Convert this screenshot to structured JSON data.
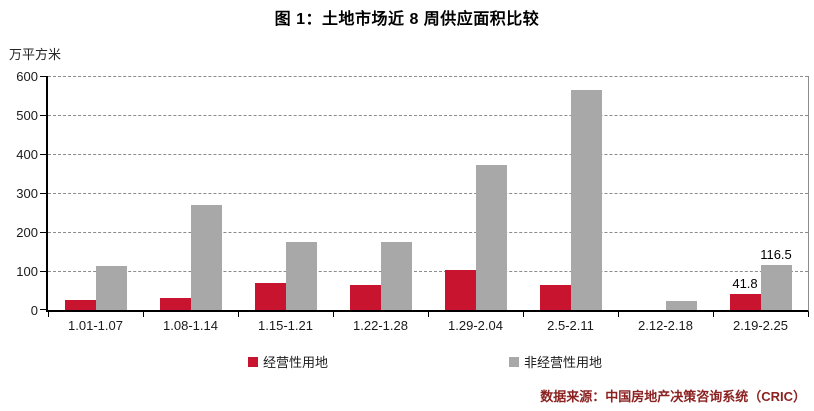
{
  "title": "图 1：土地市场近 8 周供应面积比较",
  "unit_label": "万平方米",
  "source": "数据来源：中国房地产决策咨询系统（CRIC）",
  "colors": {
    "operational": "#C8142E",
    "non_operational": "#A8A8A8",
    "grid": "#8C8C8C",
    "source_text": "#8B2221"
  },
  "chart_data": {
    "type": "bar",
    "categories": [
      "1.01-1.07",
      "1.08-1.14",
      "1.15-1.21",
      "1.22-1.28",
      "1.29-2.04",
      "2.5-2.11",
      "2.12-2.18",
      "2.19-2.25"
    ],
    "series": [
      {
        "name": "经营性用地",
        "color_key": "operational",
        "values": [
          25,
          30,
          70,
          65,
          103,
          64,
          0,
          41.8
        ]
      },
      {
        "name": "非经营性用地",
        "color_key": "non_operational",
        "values": [
          114,
          268,
          174,
          175,
          372,
          565,
          23,
          116.5
        ]
      }
    ],
    "title": "图 1：土地市场近 8 周供应面积比较",
    "xlabel": "",
    "ylabel": "万平方米",
    "yticks": [
      0,
      100,
      200,
      300,
      400,
      500,
      600
    ],
    "ylim": [
      0,
      600
    ],
    "grid": "horizontal-dashed",
    "legend_position": "bottom",
    "annotations": [
      {
        "category_index": 7,
        "series_index": 0,
        "text": "41.8"
      },
      {
        "category_index": 7,
        "series_index": 1,
        "text": "116.5"
      }
    ]
  }
}
